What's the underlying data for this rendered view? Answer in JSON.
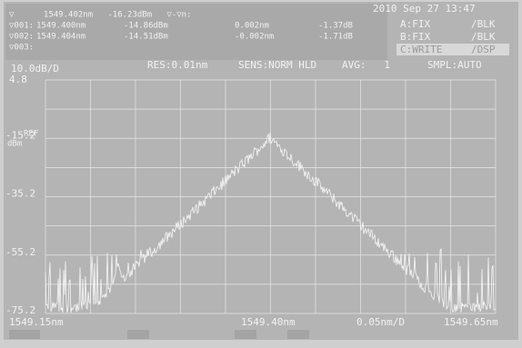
{
  "status": {
    "datetime": "2010 Sep 27 13:47",
    "marker_header": "▽      1549.402nm   -16.23dBm   ▽-▽n:",
    "markers": [
      {
        "label": "▽001:",
        "wavelength": "1549.400nm",
        "power": "-14.86dBm",
        "delta_wavelength": "0.002nm",
        "delta_power": "-1.37dB"
      },
      {
        "label": "▽002:",
        "wavelength": "1549.404nm",
        "power": "-14.51dBm",
        "delta_wavelength": "-0.002nm",
        "delta_power": "-1.71dB"
      },
      {
        "label": "▽003:"
      }
    ],
    "traces": [
      {
        "name": "A:FIX",
        "mode": "/BLK"
      },
      {
        "name": "B:FIX",
        "mode": "/BLK"
      },
      {
        "name": "C:WRITE",
        "mode": "/DSP"
      }
    ]
  },
  "settings": {
    "scale": "10.0dB/D",
    "resolution": "RES:0.01nm",
    "sensitivity": "SENS:NORM HLD",
    "average": "AVG:   1",
    "sampling": "SMPL:AUTO"
  },
  "y_labels": [
    "4.8",
    "-15.2",
    "-35.2",
    "-55.2",
    "-75.2"
  ],
  "ref_label": "REF",
  "unit_label": "dBm",
  "x_labels": {
    "start": "1549.15nm",
    "center": "1549.40nm",
    "span": "0.05nm/D",
    "stop": "1549.65nm"
  }
}
